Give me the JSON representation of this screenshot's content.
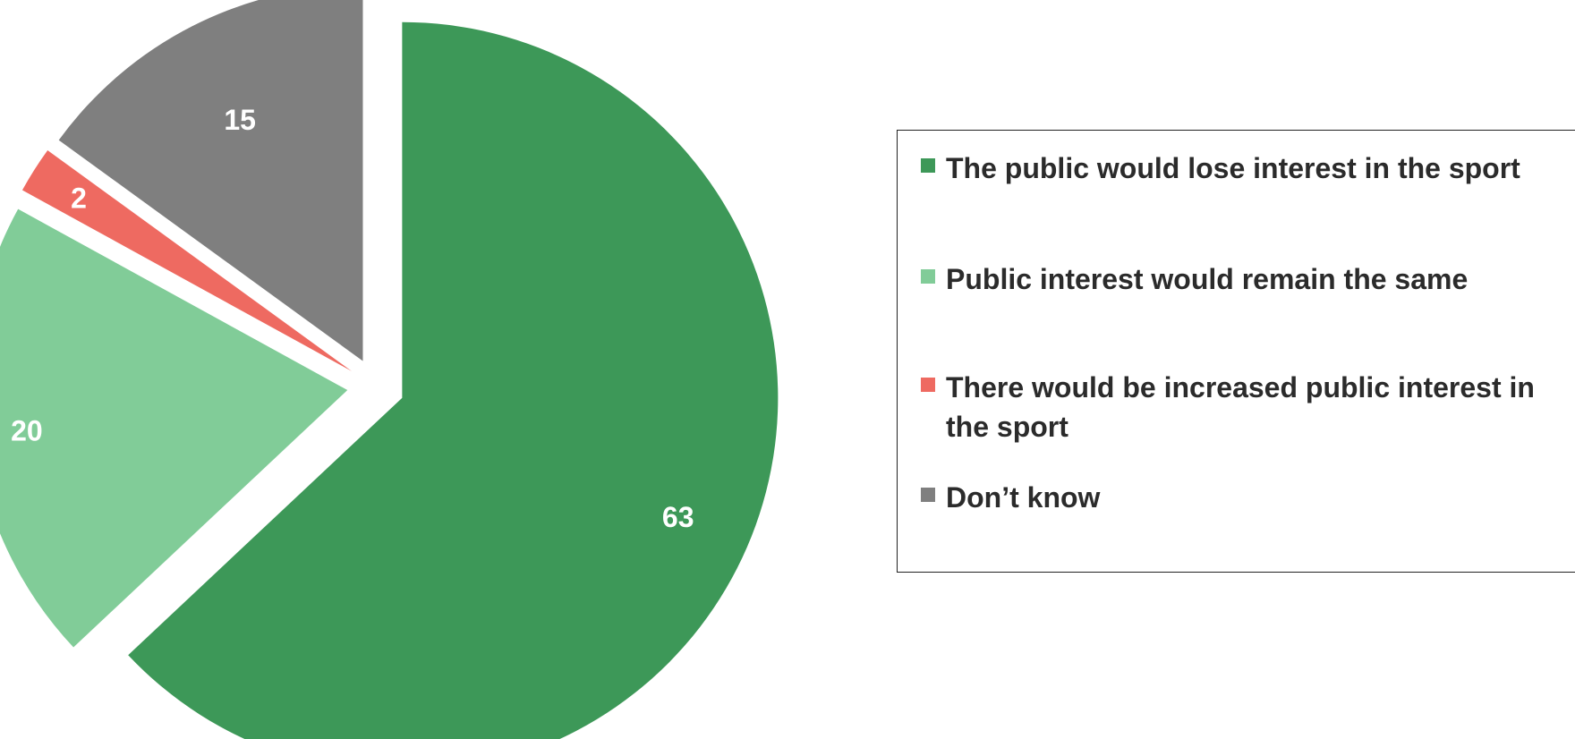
{
  "chart_data": {
    "type": "pie",
    "title": "",
    "unit": "",
    "start_angle_deg": 0,
    "direction": "clockwise",
    "explode": true,
    "legend_placement": "right",
    "slices": [
      {
        "label": "The public would lose interest in the sport",
        "value": 63,
        "color": "#3d9858"
      },
      {
        "label": "Public interest would remain the same",
        "value": 20,
        "color": "#81cc98"
      },
      {
        "label": "There would be increased public interest in the sport",
        "value": 2,
        "color": "#ee6a61"
      },
      {
        "label": "Don’t know",
        "value": 15,
        "color": "#7f7f7f"
      }
    ]
  }
}
